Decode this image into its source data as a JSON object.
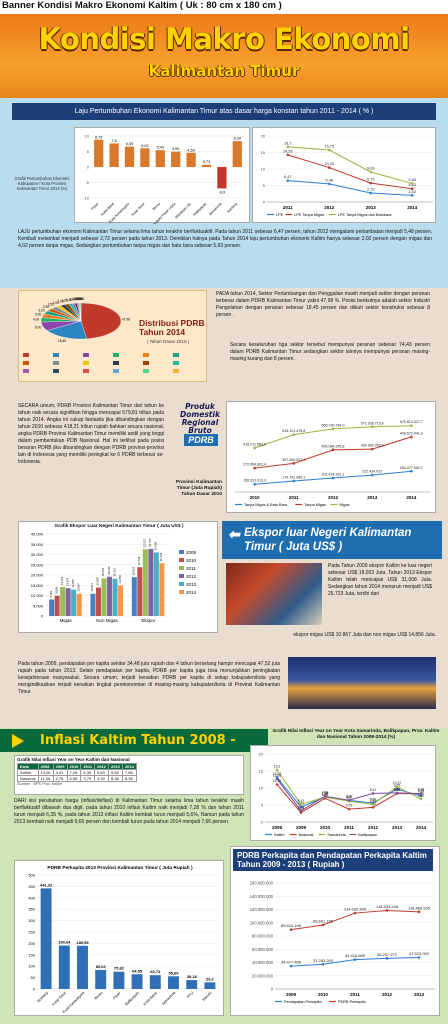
{
  "banner": {
    "title": "Banner Kondisi Makro Ekonomi Kaltim ( Uk : 80 cm x 180 cm )",
    "main_title": "Kondisi Makro Ekonomi",
    "sub_title": "Kalimantan Timur"
  },
  "section1": {
    "heading": "Laju Pertumbuhan Ekonomi Kalimantan Timur atas dasar harga konstan tahun 2011 - 2014 ( % )",
    "side_label": "Grafik Pertumbuhan Ekonomi Kabupaten / Kota Provinsi Kalimantan Timur 2014 (%)",
    "paragraph": "LAJU pertumbuhan ekonomi Kalimantan Timur selama lima tahun terakhir berfluktuaktif. Pada tahun 2011 sebesar 6,47 persen, tahun 2012 mengalami perlambatan menjadi 5,48 persen, Kembali melambat menjadi sebesar 2,72 persen pada tahun 2013. Demikian halnya pada Tahun 2014 laju pertumbuhan ekonomi Kaltim hanya sebesar 2,02 persen dengan migas dan 4,02 persen tanpa migas, Sedangkan pertumbuhan tanpa migas dan batu bara sebesar 5,63 persen."
  },
  "section2": {
    "distribusi_title": "Distribusi PDRB Tahun 2014",
    "distribusi_note": "( Tahun Dasar 2010 )",
    "distribusi_paragraph": "PADA tahun 2014, Sektor Pertambangan dan Penggalian masih menjadi sektor dengan peranan terbesar dalam PDRB Kalimantan Timur yakni 47,98 %. Posisi berikutnya adalah sektor Industri Pengolahan dengan peranan sebesar 18,45 persen dan diikuti sektor konstruksi sebesar 8 persen .",
    "distribusi_paragraph2": "Secara keseluruhan tiga sektor tersebut mempunyai peranan sebesar 74,43 persen dalam PDRB Kalimantan Timur sedangkan sektor lainnya mempunyai peranan masing-masing kurang dari 8 persen.",
    "pdrb_paragraph": "SECARA umum, PDRB Provinsi Kalimantan Timur dari tahun ke tahun naik secara signifikan hingga mencapai 579,81 triliun pada tahun 2014. Angka ini cukup fantastis jika dibandingkan dengan tahun 2010 sebesar 418,21 triliun rupiah bahkan secara nasional, angka PDRB Provinsi Kalimantan Timur memiliki andil yang tinggi dalam pembentukan PDB Nasional. Hal ini terlihat pada posisi besaran PDRB jika dibandingkan dengan PDRB provinsi-provinsi lain di Indonesia yang memiliki peringkat ke 6 PDRB terbesar se-Indonesia.",
    "pdrb_heading": "Produk Domestik Regional Bruto",
    "pdrb_badge": "PDRB",
    "pdrb_caption": "Provinsi Kalimantan Timur (Juta Rupiah) Tahun Dasar 2010",
    "ekspor_chart_title": "Grafik Ekspor Luar Negeri Kalimantan Timur ( Juta US$ )",
    "ekspor_title": "Ekspor luar Negeri Kalimantan Timur ( Juta US$ )",
    "ekspor_paragraph": "Pada Tahun 2009 ekspor Kaltim ke luar negeri sebesar US$ 18,923 Juta. Tahun 2013 Ekspor Kaltim telah mencapai US$ 31,008 Juta. Sedangkan tahun 2014 menurun menjadi US$ 25,723 Juta, terdiri dari",
    "ekspor_paragraph2": "ekspor migas US$ 10.867 Juta dan non migas US$ 14,856 Juta.",
    "perkapita_paragraph": "Pada tahun 2009, pendapatan per kapita sekitar 34,48 juta rupiah dan 4 tahun berselang hampir mencapai 47,52 juta rupiah pada tahun 2013. Selain pendapatan per kapita, PDRB per kapita juga bisa menunjukkan peningkatan kesejahteraan masyarakat. Secara umum, terjadi kenaikan PDRB per kapita di setiap kabupaten/kota yang mengindikasikan terjadi kenaikan tingkat perekonomian di masing-masing kabupaten/kota di Provinsi Kalimantan Timur."
  },
  "section3": {
    "inflasi_title": "Inflasi Kaltim Tahun 2008 - 2014",
    "inflasi_table_title": "Grafik Nilai Inflasi Year on Year Kaltim dan Nasional",
    "inflasi_table": {
      "headers": [
        "Kota",
        "2008",
        "2009",
        "2010",
        "2011",
        "2012",
        "2013",
        "2014"
      ],
      "rows": [
        [
          "Kaltim",
          "13,06",
          "4,41",
          "7,28",
          "6,35",
          "5,60",
          "9,65",
          "7,66"
        ],
        [
          "Nasional",
          "11,06",
          "2,78",
          "6,96",
          "3,79",
          "4,30",
          "8,38",
          "8,36"
        ]
      ],
      "source": "Sumber : BPS Prov. Kaltim"
    },
    "inflasi_kota_title": "Grafik Nilai Inflasi Year on Year Kota Samarinda, Balikpapan, Prov. Kaltim dan Nasional Tahun 2008-2014 (%)",
    "inflasi_paragraph": "DARI sisi perubahan harga (inflasi/deflasi) di Kalimantan Timur selama lima tahun terakhir masih berfluktuatif dibawah dua digit, pada tahun 2010 inflasi Kaltim naik menjadi 7,28 % dan tahun 2011 turun menjadi 6,35 %, pada tahun 2012 inflasi Kaltim kembali turun menjadi 5,6%, Namun pada tahun 2013 kembali naik menjadi 9,65 persen dan kembali turun pada tahun 2014 menjadi 7,66 persen.",
    "perkapita_title": "PDRB Perkapita dan Pendapatan Perkapita Kaltim Tahun 2009 - 2013 ( Rupiah )"
  },
  "colors": {
    "orange": "#f39a25",
    "navy": "#1d3f79",
    "green": "#0b6a3b",
    "yellow": "#ffd200"
  },
  "chart_data": [
    {
      "type": "bar",
      "categories": [
        "Paser",
        "Kutai Barat",
        "Kutai Kartanegara",
        "Kutai Timur",
        "Berau",
        "Penajam Paser Utara",
        "Mahakam Ulu",
        "Balikpapan",
        "Samarinda",
        "Bontang"
      ],
      "values": [
        8.79,
        7.6,
        6.59,
        6.02,
        5.43,
        4.95,
        4.59,
        0.73,
        -6.9,
        8.34
      ],
      "labels": [
        "8,79",
        "7,6",
        "6,59",
        "6,02",
        "5,43",
        "4,95",
        "4,59",
        "0,73",
        "-6,9",
        "8,34"
      ],
      "ylim": [
        -10,
        10
      ]
    },
    {
      "type": "line",
      "x": [
        "2011",
        "2012",
        "2013",
        "2014"
      ],
      "series": [
        {
          "name": "LPE",
          "values": [
            6.47,
            5.48,
            2.72,
            2.02
          ],
          "labels": [
            "6,47",
            "5,48",
            "2,72",
            "2,02"
          ]
        },
        {
          "name": "LPE Tanpa Migas",
          "values": [
            14.28,
            10.43,
            5.73,
            4.02
          ],
          "labels": [
            "14,28",
            "10,43",
            "5,73",
            "4,02"
          ]
        },
        {
          "name": "LPE Tanpa Migas dan Batubara",
          "values": [
            16.7,
            15.75,
            9.09,
            5.63
          ],
          "labels": [
            "16,7",
            "15,75",
            "9,09",
            "5,63"
          ]
        }
      ],
      "ylim": [
        0,
        20
      ]
    },
    {
      "type": "pie",
      "values": [
        47.98,
        18.45,
        8.0,
        4.0,
        3.5,
        3.0,
        2.5,
        2.5,
        2.0,
        2.0,
        1.5,
        1.5,
        1.0,
        1.0,
        0.5,
        0.5,
        0.5,
        0.06
      ],
      "labels": [
        "47,98",
        "18,45",
        "8,00",
        "4,00",
        "3,50",
        "3,00",
        "2,50",
        "2,50",
        "2,00",
        "2,00",
        "1,50",
        "1,50",
        "1,00",
        "1,00",
        "0,50",
        "0,50",
        "0,50",
        "0,06"
      ]
    },
    {
      "type": "line",
      "x": [
        "2010",
        "2011",
        "2012",
        "2013",
        "2014"
      ],
      "series": [
        {
          "name": "Tanpa Migas & Batu Bara",
          "values": [
            156331613.9,
            179791089.1,
            201424281.1,
            222434022,
            250077582.7
          ],
          "labels": [
            "156.331.613,9",
            "179.791.089,1",
            "201.424.281,1",
            "222.434.022",
            "250.077.582,7"
          ]
        },
        {
          "name": "Tanpa Migas",
          "values": [
            272954861.4,
            307400001.1,
            405084245.8,
            409990393.5,
            498672941.3
          ],
          "labels": [
            "272.954.861,4",
            "307.400.001,1",
            "405.084.245,8",
            "409.990.393,5",
            "498.672.941,3"
          ]
        },
        {
          "name": "Migas",
          "values": [
            418211583.6,
            515101475.8,
            556730784,
            571938715.6,
            579813427.7
          ],
          "labels": [
            "418.211.583,6",
            "515.101.475,8",
            "556.730.784,0",
            "571.938.715,6",
            "579.813.427,7"
          ]
        }
      ],
      "ylim": [
        100000000,
        650000000
      ]
    },
    {
      "type": "bar",
      "categories": [
        "Migas",
        "Non Migas",
        "Ekspor"
      ],
      "series": [
        {
          "name": "2009",
          "values": [
            8052,
            10871,
            18923
          ],
          "labels": [
            "8.052",
            "10.871",
            "18.923"
          ]
        },
        {
          "name": "2010",
          "values": [
            9886,
            13882,
            23768
          ],
          "labels": [
            "9.886",
            "13.882",
            "23.768"
          ]
        },
        {
          "name": "2011",
          "values": [
            14151,
            18376,
            32527
          ],
          "labels": [
            "14.151",
            "18.376",
            "32.527"
          ]
        },
        {
          "name": "2012",
          "values": [
            13567,
            19160,
            32727
          ],
          "labels": [
            "13.567",
            "19.160",
            "32.727"
          ]
        },
        {
          "name": "2013",
          "values": [
            12855,
            18153,
            31008
          ],
          "labels": [
            "12.855",
            "18.153",
            "31.008"
          ]
        },
        {
          "name": "2014",
          "values": [
            10867,
            14856,
            25723
          ],
          "labels": [
            "10.867",
            "14.856",
            "25.723"
          ]
        }
      ],
      "ylim": [
        0,
        40000
      ]
    },
    {
      "type": "line",
      "x": [
        "2008",
        "2009",
        "2010",
        "2011",
        "2012",
        "2013",
        "2014"
      ],
      "series": [
        {
          "name": "Kaltim",
          "values": [
            13.06,
            4.41,
            7.28,
            6.35,
            5.6,
            9.65,
            7.66
          ],
          "labels": [
            "13,06",
            "4,41",
            "7,28",
            "6,35",
            "5,60",
            "9,65",
            "7,66"
          ]
        },
        {
          "name": "Nasional",
          "values": [
            11.06,
            2.78,
            6.96,
            3.79,
            4.3,
            8.38,
            8.36
          ],
          "labels": [
            "11,06",
            "2,78",
            "6,96",
            "3,79",
            "4,30",
            "8,38",
            "8,36"
          ]
        },
        {
          "name": "Samarinda",
          "values": [
            15.3,
            5.17,
            7.36,
            6.1,
            5.2,
            10.37,
            6.76
          ],
          "labels": [
            "15,3",
            "5,17",
            "7,36",
            "6,1",
            "5,20",
            "10,37",
            "6,76"
          ]
        },
        {
          "name": "Balikpapan",
          "values": [
            12.66,
            3.28,
            7.58,
            6.4,
            8.41,
            8.55,
            8.35
          ],
          "labels": [
            "12,66",
            "3,28",
            "7,58",
            "6,4",
            "8,41",
            "8,55",
            "8,35"
          ]
        }
      ],
      "ylim": [
        0,
        20
      ]
    },
    {
      "type": "bar",
      "title": "PDRB Perkapita 2013 Provinsi Kalimantan Timur ( Juta Rupiah )",
      "categories": [
        "Bontang",
        "Kutai Timur",
        "Kutai Kartanegara",
        "Berau",
        "Paser",
        "Balikpapan",
        "Kutai Barat",
        "Samarinda",
        "PPU",
        "Mahulu"
      ],
      "values": [
        441.32,
        190.64,
        189.55,
        83.62,
        75.82,
        64.55,
        60.73,
        55.69,
        39.18,
        29.2
      ],
      "labels": [
        "441,32",
        "190,64",
        "189,55",
        "83,62",
        "75,82",
        "64,55",
        "60,73",
        "55,69",
        "39,18",
        "29,2"
      ],
      "ylim": [
        0,
        500
      ]
    },
    {
      "type": "line",
      "x": [
        "2009",
        "2010",
        "2011",
        "2012",
        "2013"
      ],
      "series": [
        {
          "name": "Pendapatan Perkapita",
          "values": [
            34477406,
            37283263,
            44416689,
            46297272,
            47523000
          ],
          "labels": [
            "34.477.406",
            "37.283.263",
            "44.416.689",
            "46.297.272",
            "47.523.000"
          ]
        },
        {
          "name": "PDRB Perkapita",
          "values": [
            89610199,
            96651165,
            114632390,
            118533248,
            116460205
          ],
          "labels": [
            "89.610.199",
            "96.651.165",
            "114.632.390",
            "118.533.248",
            "116.460.205"
          ]
        }
      ],
      "ylim": [
        0,
        160000000
      ],
      "yticks": [
        "0",
        "20.000.000",
        "40.000.000",
        "60.000.000",
        "80.000.000",
        "100.000.000",
        "120.000.000",
        "140.000.000",
        "160.000.000"
      ]
    }
  ]
}
